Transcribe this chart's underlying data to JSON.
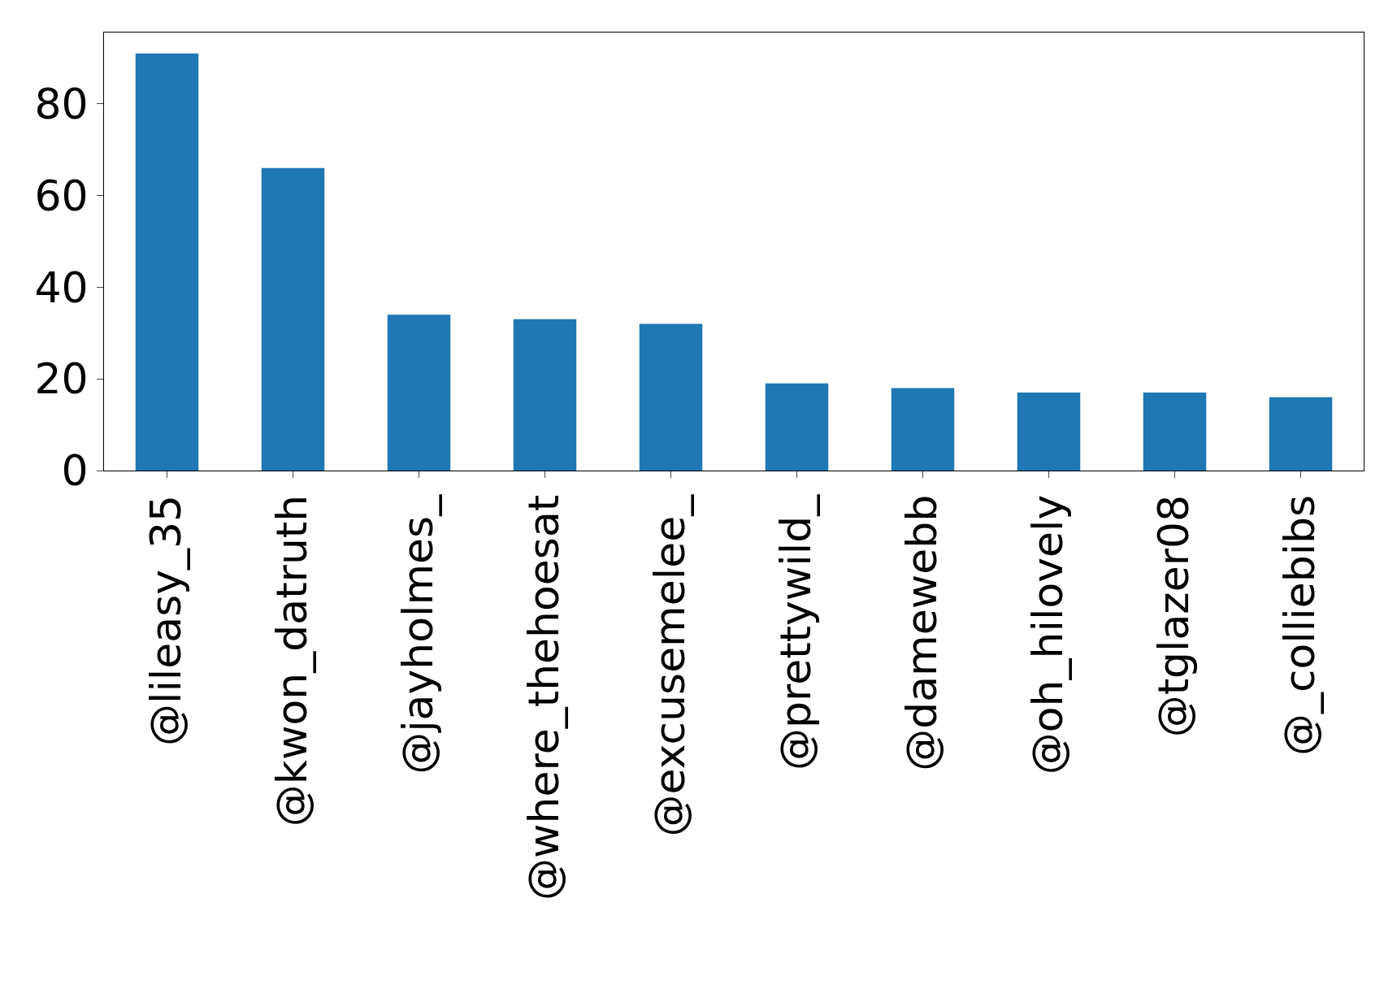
{
  "chart_data": {
    "type": "bar",
    "categories": [
      "@lileasy_35",
      "@kwon_datruth",
      "@jayholmes_",
      "@where_thehoesat",
      "@excusemelee_",
      "@prettywild_",
      "@damewebb",
      "@oh_hilovely",
      "@tglazer08",
      "@_colliebibs"
    ],
    "values": [
      91,
      66,
      34,
      33,
      32,
      19,
      18,
      17,
      17,
      16
    ],
    "color": "#1f77b4",
    "ylim": [
      0,
      95.55
    ],
    "yticks": [
      0,
      20,
      40,
      60,
      80
    ],
    "grid": false
  }
}
